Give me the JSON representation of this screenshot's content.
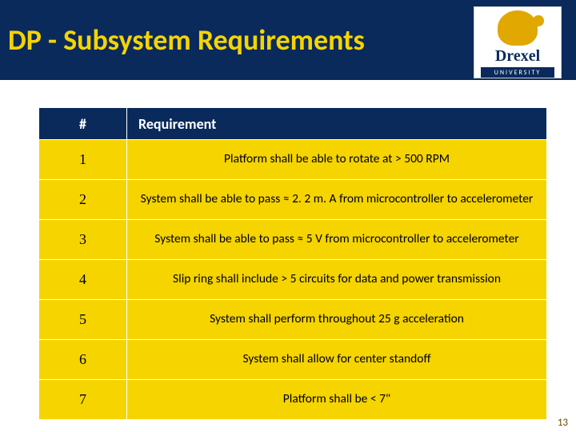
{
  "title": "DP - Subsystem Requirements",
  "logo": {
    "name": "Drexel",
    "sub": "UNIVERSITY"
  },
  "table": {
    "headers": {
      "num": "#",
      "req": "Requirement"
    },
    "rows": [
      {
        "num": "1",
        "req": "Platform shall be able to rotate at > 500 RPM"
      },
      {
        "num": "2",
        "req": "System shall be able to pass ≈ 2. 2 m. A from microcontroller to accelerometer"
      },
      {
        "num": "3",
        "req": "System shall be able to pass ≈ 5 V from microcontroller to accelerometer"
      },
      {
        "num": "4",
        "req": "Slip ring shall include > 5 circuits for data and power transmission"
      },
      {
        "num": "5",
        "req": "System shall perform throughout 25 g acceleration"
      },
      {
        "num": "6",
        "req": "System shall allow for center standoff"
      },
      {
        "num": "7",
        "req": "Platform shall be < 7\""
      }
    ]
  },
  "page_number": "13",
  "colors": {
    "navy": "#0a2a5c",
    "gold": "#f5d400",
    "white": "#ffffff",
    "black": "#000000"
  }
}
